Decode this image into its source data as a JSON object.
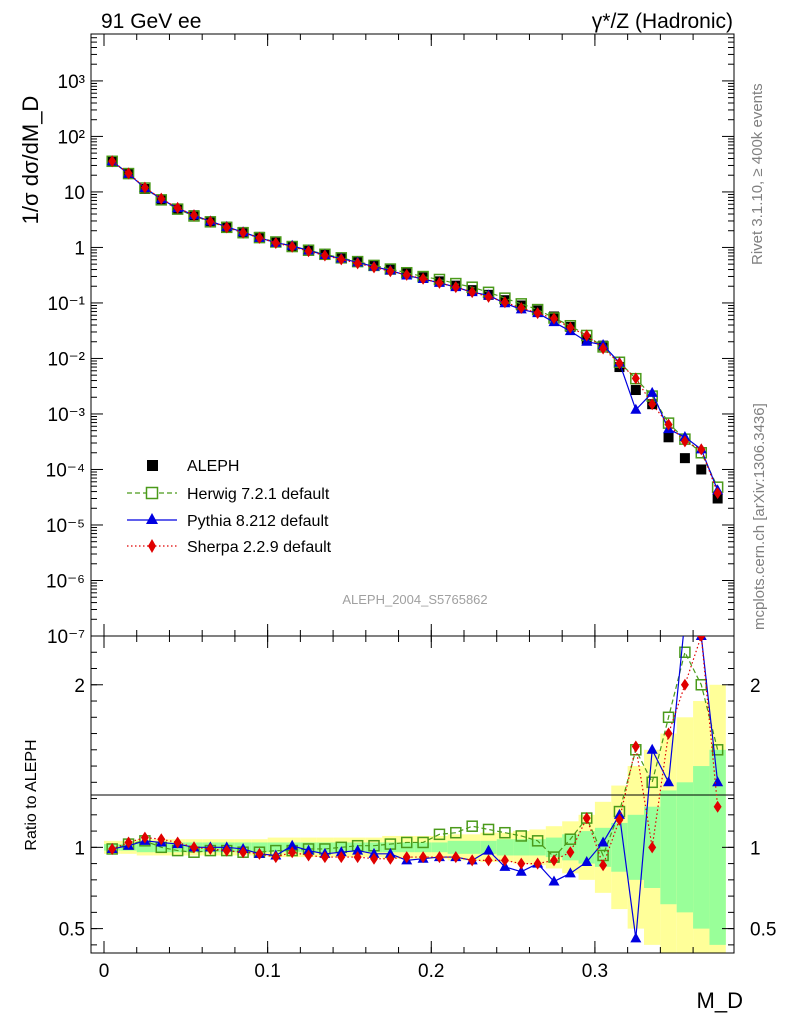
{
  "header": {
    "left": "91 GeV ee",
    "right": "γ*/Z (Hadronic)"
  },
  "side_labels": {
    "rivet": "Rivet 3.1.10, ≥ 400k events",
    "source": "mcplots.cern.ch [arXiv:1306.3436]"
  },
  "analysis_id": "ALEPH_2004_S5765862",
  "colors": {
    "aleph": "#000000",
    "herwig": "#4a9a1a",
    "pythia": "#0000e0",
    "sherpa": "#e00000",
    "band_inner": "#99ff99",
    "band_outer": "#ffff99"
  },
  "chart_data": {
    "type": "line",
    "title": "",
    "xlabel": "M_D",
    "ylabel": "1/σ dσ/dM_D",
    "ratio_ylabel": "Ratio to ALEPH",
    "x_range": [
      0,
      0.385
    ],
    "y_range_log": [
      1e-07,
      7000
    ],
    "ratio_range": [
      0.35,
      2.3
    ],
    "x_ticks": [
      0,
      0.1,
      0.2,
      0.3
    ],
    "x_tick_labels": [
      "0",
      "0.1",
      "0.2",
      "0.3"
    ],
    "y_ticks": [
      1e-07,
      1e-06,
      1e-05,
      0.0001,
      0.001,
      0.01,
      0.1,
      1,
      10,
      100,
      1000
    ],
    "ratio_ticks": [
      0.5,
      1,
      2
    ],
    "ratio_tick_labels": [
      "0.5",
      "1",
      "2"
    ],
    "x": [
      0.005,
      0.015,
      0.025,
      0.035,
      0.045,
      0.055,
      0.065,
      0.075,
      0.085,
      0.095,
      0.105,
      0.115,
      0.125,
      0.135,
      0.145,
      0.155,
      0.165,
      0.175,
      0.185,
      0.195,
      0.205,
      0.215,
      0.225,
      0.235,
      0.245,
      0.255,
      0.265,
      0.275,
      0.285,
      0.295,
      0.305,
      0.315,
      0.325,
      0.335,
      0.345,
      0.355,
      0.365,
      0.375
    ],
    "aleph": [
      36,
      21,
      11.3,
      7.2,
      5.0,
      3.8,
      2.95,
      2.35,
      1.9,
      1.55,
      1.28,
      1.06,
      0.9,
      0.76,
      0.65,
      0.55,
      0.47,
      0.4,
      0.34,
      0.29,
      0.245,
      0.205,
      0.17,
      0.14,
      0.112,
      0.09,
      0.073,
      0.057,
      0.037,
      0.022,
      0.017,
      0.007,
      0.0027,
      0.0015,
      0.00038,
      0.00016,
      0.0001,
      3e-05
    ],
    "band_inner": [
      0.02,
      0.02,
      0.03,
      0.03,
      0.03,
      0.03,
      0.03,
      0.03,
      0.03,
      0.03,
      0.03,
      0.03,
      0.03,
      0.03,
      0.03,
      0.03,
      0.03,
      0.03,
      0.03,
      0.03,
      0.03,
      0.04,
      0.04,
      0.04,
      0.05,
      0.05,
      0.05,
      0.06,
      0.08,
      0.1,
      0.12,
      0.15,
      0.2,
      0.25,
      0.35,
      0.4,
      0.5,
      0.6
    ],
    "band_outer": [
      0.04,
      0.04,
      0.05,
      0.05,
      0.05,
      0.05,
      0.05,
      0.05,
      0.05,
      0.05,
      0.06,
      0.06,
      0.06,
      0.06,
      0.06,
      0.06,
      0.06,
      0.07,
      0.07,
      0.07,
      0.07,
      0.08,
      0.08,
      0.09,
      0.09,
      0.1,
      0.11,
      0.13,
      0.16,
      0.2,
      0.28,
      0.38,
      0.5,
      0.6,
      0.7,
      0.8,
      0.9,
      1.0
    ],
    "series": [
      {
        "name": "ALEPH",
        "key": "aleph",
        "marker": "square",
        "ratio": [
          1,
          1,
          1,
          1,
          1,
          1,
          1,
          1,
          1,
          1,
          1,
          1,
          1,
          1,
          1,
          1,
          1,
          1,
          1,
          1,
          1,
          1,
          1,
          1,
          1,
          1,
          1,
          1,
          1,
          1,
          1,
          1,
          1,
          1,
          1,
          1,
          1,
          1
        ]
      },
      {
        "name": "Herwig 7.2.1 default",
        "key": "herwig",
        "marker": "open-square",
        "line": "dashed",
        "ratio": [
          0.99,
          1.02,
          1.04,
          1.0,
          0.98,
          0.97,
          0.98,
          0.98,
          0.97,
          0.97,
          0.98,
          0.98,
          0.99,
          0.99,
          1.0,
          1.01,
          1.01,
          1.02,
          1.03,
          1.03,
          1.08,
          1.09,
          1.13,
          1.11,
          1.09,
          1.07,
          1.04,
          0.94,
          1.05,
          1.18,
          0.95,
          1.22,
          1.6,
          1.4,
          1.8,
          2.2,
          2.0,
          1.6
        ]
      },
      {
        "name": "Pythia 8.212 default",
        "key": "pythia",
        "marker": "triangle",
        "line": "solid",
        "ratio": [
          0.99,
          1.01,
          1.04,
          1.03,
          1.02,
          1.0,
          1.0,
          1.0,
          0.99,
          0.96,
          0.95,
          1.01,
          0.98,
          0.96,
          0.97,
          0.98,
          0.96,
          0.96,
          0.92,
          0.93,
          0.94,
          0.94,
          0.92,
          0.98,
          0.88,
          0.85,
          0.9,
          0.79,
          0.84,
          0.91,
          1.03,
          1.2,
          0.44,
          1.6,
          1.4,
          2.4,
          2.3,
          1.4
        ]
      },
      {
        "name": "Sherpa 2.2.9 default",
        "key": "sherpa",
        "marker": "diamond",
        "line": "dotted",
        "ratio": [
          0.99,
          1.03,
          1.06,
          1.05,
          1.03,
          1.0,
          0.99,
          0.98,
          0.97,
          0.96,
          0.94,
          0.97,
          0.95,
          0.94,
          0.94,
          0.94,
          0.93,
          0.93,
          0.94,
          0.94,
          0.94,
          0.94,
          0.92,
          0.92,
          0.92,
          0.9,
          0.9,
          0.92,
          0.97,
          1.18,
          0.89,
          1.17,
          1.62,
          1.0,
          1.7,
          2.0,
          2.3,
          1.25
        ]
      }
    ],
    "legend": {
      "position": "middle-left",
      "entries": [
        "ALEPH",
        "Herwig 7.2.1 default",
        "Pythia 8.212 default",
        "Sherpa 2.2.9 default"
      ]
    }
  }
}
